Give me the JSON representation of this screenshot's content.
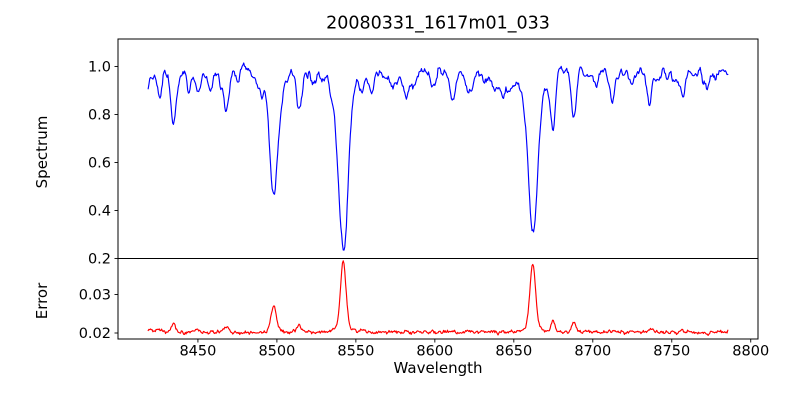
{
  "chart_data": {
    "type": "line",
    "title": "20080331_1617m01_033",
    "xlabel": "Wavelength",
    "seed": 7,
    "x_start": 8418.5,
    "x_end": 8785.5,
    "x_step": 0.5,
    "xlim": [
      8399.4,
      8804.6
    ],
    "xticks": [
      8450,
      8500,
      8550,
      8600,
      8650,
      8700,
      8750,
      8800
    ],
    "xtick_labels": [
      "8450",
      "8500",
      "8550",
      "8600",
      "8650",
      "8700",
      "8750",
      "8800"
    ],
    "grid": false,
    "legend": "none",
    "panels": [
      {
        "name": "spectrum",
        "ylabel": "Spectrum",
        "color": "#0000ff",
        "ylim": [
          0.2,
          1.1146
        ],
        "yticks": [
          0.2,
          0.4,
          0.6,
          0.8,
          1.0
        ],
        "ytick_labels": [
          "0.2",
          "0.4",
          "0.6",
          "0.8",
          "1.0"
        ],
        "continuum_level": 0.982,
        "noise_fine_amp": 0.04,
        "noise_medium_amp": 0.055,
        "noise_jitter_amp": 0.007,
        "forest_dip_count": 65,
        "clamp": [
          0.235,
          1.105
        ],
        "absorption_lines": [
          [
            8426,
            0.1,
            1.4
          ],
          [
            8434.5,
            0.25,
            1.7
          ],
          [
            8444,
            0.06,
            1.2
          ],
          [
            8450,
            0.1,
            1.4
          ],
          [
            8458,
            0.05,
            1.2
          ],
          [
            8468,
            0.13,
            1.8
          ],
          [
            8476,
            0.05,
            1.2
          ],
          [
            8490,
            0.07,
            1.4
          ],
          [
            8498,
            0.45,
            2.6
          ],
          [
            8498,
            0.06,
            7.0
          ],
          [
            8514,
            0.16,
            1.8
          ],
          [
            8522,
            0.05,
            1.2
          ],
          [
            8542,
            0.68,
            3.0
          ],
          [
            8542,
            0.06,
            9.0
          ],
          [
            8554,
            0.07,
            1.4
          ],
          [
            8560,
            0.05,
            1.2
          ],
          [
            8582,
            0.12,
            1.6
          ],
          [
            8598,
            0.07,
            1.4
          ],
          [
            8611,
            0.1,
            1.5
          ],
          [
            8621,
            0.1,
            1.5
          ],
          [
            8637,
            0.05,
            1.2
          ],
          [
            8648,
            0.07,
            1.4
          ],
          [
            8662,
            0.62,
            2.9
          ],
          [
            8662,
            0.06,
            9.0
          ],
          [
            8675,
            0.2,
            1.5
          ],
          [
            8688,
            0.21,
            1.7
          ],
          [
            8702,
            0.06,
            1.3
          ],
          [
            8713,
            0.09,
            1.5
          ],
          [
            8724,
            0.05,
            1.2
          ],
          [
            8736,
            0.1,
            1.7
          ],
          [
            8747,
            0.05,
            1.2
          ],
          [
            8757,
            0.11,
            1.7
          ],
          [
            8772,
            0.07,
            1.4
          ]
        ]
      },
      {
        "name": "error",
        "ylabel": "Error",
        "color": "#ff0000",
        "ylim": [
          0.018442,
          0.03935
        ],
        "yticks": [
          0.02,
          0.03
        ],
        "ytick_labels": [
          "0.02",
          "0.03"
        ],
        "baseline": 0.0202,
        "noise_smooth_amp": 0.0007,
        "noise_jitter_amp": 0.0003,
        "clamp": [
          0.0188,
          0.039
        ],
        "peaks": [
          [
            8420,
            0.0008,
            2.5
          ],
          [
            8426,
            0.0007,
            1.5
          ],
          [
            8434.5,
            0.0026,
            1.4
          ],
          [
            8450,
            0.0008,
            1.4
          ],
          [
            8468,
            0.0013,
            1.8
          ],
          [
            8498,
            0.0072,
            1.7
          ],
          [
            8514,
            0.0022,
            1.4
          ],
          [
            8542,
            0.0168,
            1.7
          ],
          [
            8542,
            0.0016,
            5.0
          ],
          [
            8554,
            0.0009,
            1.3
          ],
          [
            8582,
            0.0008,
            1.4
          ],
          [
            8611,
            0.0005,
            1.3
          ],
          [
            8621,
            0.0005,
            1.3
          ],
          [
            8662,
            0.0163,
            1.7
          ],
          [
            8662,
            0.0015,
            5.0
          ],
          [
            8675,
            0.0031,
            1.2
          ],
          [
            8688,
            0.0029,
            1.3
          ],
          [
            8713,
            0.0006,
            1.3
          ],
          [
            8736,
            0.0011,
            1.8
          ],
          [
            8757,
            0.0007,
            1.4
          ]
        ]
      }
    ]
  }
}
